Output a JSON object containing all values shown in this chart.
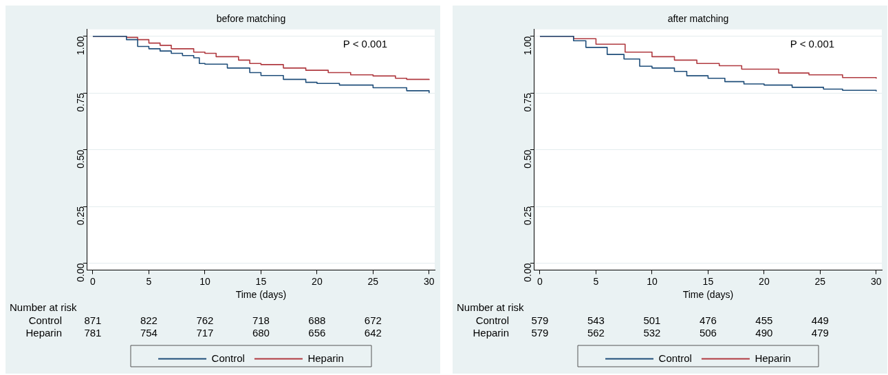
{
  "chart_data": [
    {
      "type": "step",
      "title": "before matching",
      "xlabel": "Time (days)",
      "xlim": [
        -0.5,
        30.5
      ],
      "xticks": [
        0,
        5,
        10,
        15,
        20,
        25,
        30
      ],
      "ylim": [
        -0.03,
        1.03
      ],
      "yticks": [
        {
          "value": 0,
          "label": "0.00"
        },
        {
          "value": 0.25,
          "label": "0.25"
        },
        {
          "value": 0.5,
          "label": "0.50"
        },
        {
          "value": 0.75,
          "label": "0.75"
        },
        {
          "value": 1,
          "label": "1.00"
        }
      ],
      "grid": "y",
      "legend": "bottom",
      "marker": "none",
      "series": [
        {
          "name": "Control",
          "color": "#1f4e7a",
          "x": [
            0,
            2,
            3,
            4,
            5,
            6,
            7,
            8,
            9,
            9.5,
            10,
            12,
            14,
            15,
            17,
            19,
            20,
            22,
            25,
            28,
            30
          ],
          "values": [
            1,
            1,
            0.985,
            0.955,
            0.945,
            0.935,
            0.925,
            0.915,
            0.905,
            0.88,
            0.877,
            0.86,
            0.84,
            0.827,
            0.81,
            0.797,
            0.792,
            0.785,
            0.773,
            0.76,
            0.75
          ]
        },
        {
          "name": "Heparin",
          "color": "#b03a40",
          "x": [
            0,
            2.5,
            3,
            4,
            5,
            6,
            7,
            9,
            10,
            11,
            13,
            14,
            15,
            17,
            19,
            21,
            23,
            25,
            27,
            28,
            30
          ],
          "values": [
            1,
            1,
            0.995,
            0.985,
            0.97,
            0.96,
            0.945,
            0.93,
            0.925,
            0.91,
            0.895,
            0.88,
            0.875,
            0.86,
            0.85,
            0.84,
            0.83,
            0.825,
            0.815,
            0.81,
            0.807
          ]
        }
      ],
      "annotations": [
        "P < 0.001",
        "Number at risk",
        "Control",
        "871",
        "822",
        "762",
        "718",
        "688",
        "672",
        "Heparin",
        "781",
        "754",
        "717",
        "680",
        "656",
        "642"
      ]
    },
    {
      "type": "step",
      "title": "after matching",
      "xlabel": "Time (days)",
      "xlim": [
        -0.5,
        30.5
      ],
      "xticks": [
        0,
        5,
        10,
        15,
        20,
        25,
        30
      ],
      "ylim": [
        -0.03,
        1.03
      ],
      "yticks": [
        {
          "value": 0,
          "label": "0.00"
        },
        {
          "value": 0.25,
          "label": "0.25"
        },
        {
          "value": 0.5,
          "label": "0.50"
        },
        {
          "value": 0.75,
          "label": "0.75"
        },
        {
          "value": 1,
          "label": "1.00"
        }
      ],
      "grid": "y",
      "legend": "bottom",
      "marker": "none",
      "series": [
        {
          "name": "Control",
          "color": "#1f4e7a",
          "x": [
            0,
            2,
            3,
            4.1,
            6,
            7.5,
            8.9,
            10,
            12,
            13.1,
            15,
            16.5,
            18.2,
            20,
            22.5,
            25.3,
            27,
            30
          ],
          "values": [
            1,
            1,
            0.98,
            0.951,
            0.92,
            0.9,
            0.868,
            0.86,
            0.845,
            0.826,
            0.815,
            0.8,
            0.79,
            0.785,
            0.775,
            0.767,
            0.762,
            0.757
          ]
        },
        {
          "name": "Heparin",
          "color": "#b03a40",
          "x": [
            0,
            2.5,
            3,
            5,
            7.6,
            10,
            12,
            14,
            16,
            18,
            21.3,
            24,
            27,
            30
          ],
          "values": [
            1,
            1,
            0.989,
            0.965,
            0.93,
            0.91,
            0.895,
            0.88,
            0.87,
            0.855,
            0.838,
            0.83,
            0.818,
            0.813
          ]
        }
      ],
      "annotations": [
        "P < 0.001",
        "Number at risk",
        "Control",
        "579",
        "543",
        "501",
        "476",
        "455",
        "449",
        "Heparin",
        "579",
        "562",
        "532",
        "506",
        "490",
        "479"
      ]
    }
  ]
}
